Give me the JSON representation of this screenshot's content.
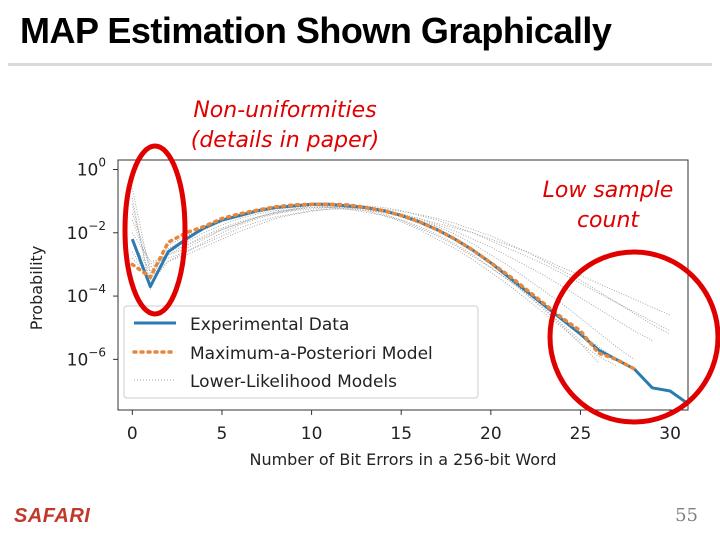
{
  "slide": {
    "title": "MAP Estimation Shown Graphically",
    "page_number": "55",
    "logo": "SAFARI"
  },
  "annotations": {
    "left_line1": "Non-uniformities",
    "left_line2": "(details in paper)",
    "right_line1": "Low sample",
    "right_line2": "count"
  },
  "colors": {
    "experimental": "#2b7bb0",
    "map": "#e8873a",
    "lower": "#a0a0a0",
    "annotation": "#e00000"
  },
  "chart_data": {
    "type": "line",
    "xlabel": "Number of Bit Errors in a 256-bit Word",
    "ylabel": "Probability",
    "xlim": [
      -0.8,
      31
    ],
    "ylim_log10": [
      -7.6,
      0.3
    ],
    "x_ticks": [
      0,
      5,
      10,
      15,
      20,
      25,
      30
    ],
    "y_ticks": [
      {
        "exp": 0,
        "base": "10",
        "label": "0"
      },
      {
        "exp": -2,
        "base": "10",
        "label": "−2"
      },
      {
        "exp": -4,
        "base": "10",
        "label": "−4"
      },
      {
        "exp": -6,
        "base": "10",
        "label": "−6"
      }
    ],
    "legend": {
      "placement": "lower-left",
      "entries": [
        "Experimental Data",
        "Maximum-a-Posteriori Model",
        "Lower-Likelihood Models"
      ]
    },
    "series": [
      {
        "name": "Experimental Data",
        "style": "solid",
        "x": [
          0,
          1,
          2,
          3,
          4,
          5,
          6,
          7,
          8,
          9,
          10,
          11,
          12,
          13,
          14,
          15,
          16,
          17,
          18,
          19,
          20,
          21,
          22,
          23,
          24,
          25,
          26,
          27,
          28,
          29,
          30,
          31
        ],
        "log10_y": [
          -2.2,
          -3.7,
          -2.6,
          -2.2,
          -1.85,
          -1.6,
          -1.45,
          -1.3,
          -1.2,
          -1.15,
          -1.1,
          -1.1,
          -1.15,
          -1.2,
          -1.3,
          -1.45,
          -1.65,
          -1.9,
          -2.2,
          -2.55,
          -2.95,
          -3.4,
          -3.85,
          -4.3,
          -4.75,
          -5.2,
          -5.7,
          -6.0,
          -6.3,
          -6.9,
          -7.0,
          -7.4
        ]
      },
      {
        "name": "Maximum-a-Posteriori Model",
        "style": "dotted",
        "x": [
          0,
          1,
          2,
          3,
          4,
          5,
          6,
          7,
          8,
          9,
          10,
          11,
          12,
          13,
          14,
          15,
          16,
          17,
          18,
          19,
          20,
          21,
          22,
          23,
          24,
          25,
          26,
          27,
          28
        ],
        "log10_y": [
          -3.0,
          -3.4,
          -2.3,
          -2.0,
          -1.8,
          -1.55,
          -1.4,
          -1.28,
          -1.18,
          -1.12,
          -1.1,
          -1.1,
          -1.12,
          -1.2,
          -1.3,
          -1.45,
          -1.65,
          -1.9,
          -2.2,
          -2.55,
          -2.95,
          -3.35,
          -3.8,
          -4.25,
          -4.7,
          -5.1,
          -5.8,
          -6.0,
          -6.3
        ]
      }
    ],
    "lower_likelihood_models": [
      {
        "x_end": 25,
        "log10_y": [
          -0.6,
          -3.3,
          -2.6,
          -2.3,
          -2.0,
          -1.75,
          -1.55,
          -1.4,
          -1.3,
          -1.25,
          -1.2,
          -1.2,
          -1.25,
          -1.35,
          -1.45,
          -1.6,
          -1.8,
          -2.05,
          -2.35,
          -2.7,
          -3.1,
          -3.5,
          -3.95,
          -4.4,
          -4.9,
          -5.4
        ]
      },
      {
        "x_end": 30,
        "log10_y": [
          -1.6,
          -3.1,
          -2.7,
          -2.5,
          -2.2,
          -1.9,
          -1.7,
          -1.5,
          -1.35,
          -1.25,
          -1.15,
          -1.1,
          -1.1,
          -1.15,
          -1.2,
          -1.3,
          -1.45,
          -1.6,
          -1.8,
          -2.0,
          -2.25,
          -2.5,
          -2.75,
          -3.0,
          -3.3,
          -3.6,
          -3.9,
          -4.2,
          -4.5,
          -4.8,
          -5.1
        ]
      },
      {
        "x_end": 28,
        "log10_y": [
          -2.6,
          -3.5,
          -2.4,
          -2.1,
          -1.85,
          -1.6,
          -1.45,
          -1.3,
          -1.2,
          -1.15,
          -1.1,
          -1.1,
          -1.15,
          -1.25,
          -1.4,
          -1.6,
          -1.85,
          -2.1,
          -2.4,
          -2.75,
          -3.1,
          -3.5,
          -3.9,
          -4.3,
          -4.75,
          -5.2,
          -5.6,
          -6.0,
          -6.3
        ]
      },
      {
        "x_end": 26,
        "log10_y": [
          -1.1,
          -3.6,
          -2.9,
          -2.6,
          -2.3,
          -2.0,
          -1.75,
          -1.55,
          -1.4,
          -1.3,
          -1.25,
          -1.2,
          -1.2,
          -1.25,
          -1.35,
          -1.5,
          -1.7,
          -1.95,
          -2.25,
          -2.6,
          -3.0,
          -3.45,
          -3.95,
          -4.45,
          -4.95,
          -5.5,
          -6.1
        ]
      },
      {
        "x_end": 30,
        "log10_y": [
          -2.0,
          -2.9,
          -2.8,
          -2.6,
          -2.35,
          -2.1,
          -1.85,
          -1.65,
          -1.5,
          -1.4,
          -1.3,
          -1.25,
          -1.25,
          -1.3,
          -1.35,
          -1.45,
          -1.55,
          -1.7,
          -1.85,
          -2.0,
          -2.2,
          -2.4,
          -2.6,
          -2.85,
          -3.1,
          -3.35,
          -3.6,
          -3.85,
          -4.1,
          -4.35,
          -4.6
        ]
      },
      {
        "x_end": 27,
        "log10_y": [
          -0.9,
          -3.8,
          -2.5,
          -2.2,
          -1.9,
          -1.65,
          -1.5,
          -1.35,
          -1.25,
          -1.2,
          -1.15,
          -1.15,
          -1.2,
          -1.3,
          -1.45,
          -1.65,
          -1.9,
          -2.2,
          -2.5,
          -2.85,
          -3.25,
          -3.65,
          -4.1,
          -4.55,
          -5.0,
          -5.5,
          -5.9,
          -6.2
        ]
      },
      {
        "x_end": 29,
        "log10_y": [
          -2.3,
          -3.2,
          -2.6,
          -2.4,
          -2.15,
          -1.9,
          -1.7,
          -1.5,
          -1.35,
          -1.25,
          -1.2,
          -1.15,
          -1.15,
          -1.2,
          -1.3,
          -1.4,
          -1.55,
          -1.75,
          -1.95,
          -2.2,
          -2.45,
          -2.75,
          -3.05,
          -3.35,
          -3.7,
          -4.05,
          -4.4,
          -4.75,
          -5.1,
          -5.4
        ]
      },
      {
        "x_end": 28,
        "log10_y": [
          -1.4,
          -3.0,
          -2.7,
          -2.4,
          -2.1,
          -1.85,
          -1.65,
          -1.5,
          -1.38,
          -1.28,
          -1.2,
          -1.18,
          -1.18,
          -1.22,
          -1.3,
          -1.42,
          -1.6,
          -1.8,
          -2.05,
          -2.35,
          -2.7,
          -3.05,
          -3.45,
          -3.85,
          -4.25,
          -4.7,
          -5.15,
          -5.6,
          -6.0
        ]
      },
      {
        "x_end": 30,
        "log10_y": [
          -2.8,
          -3.4,
          -2.9,
          -2.7,
          -2.45,
          -2.2,
          -1.95,
          -1.75,
          -1.55,
          -1.42,
          -1.32,
          -1.25,
          -1.22,
          -1.22,
          -1.25,
          -1.32,
          -1.42,
          -1.55,
          -1.7,
          -1.9,
          -2.1,
          -2.35,
          -2.6,
          -2.9,
          -3.2,
          -3.5,
          -3.85,
          -4.2,
          -4.55,
          -4.9,
          -5.2
        ]
      }
    ]
  }
}
